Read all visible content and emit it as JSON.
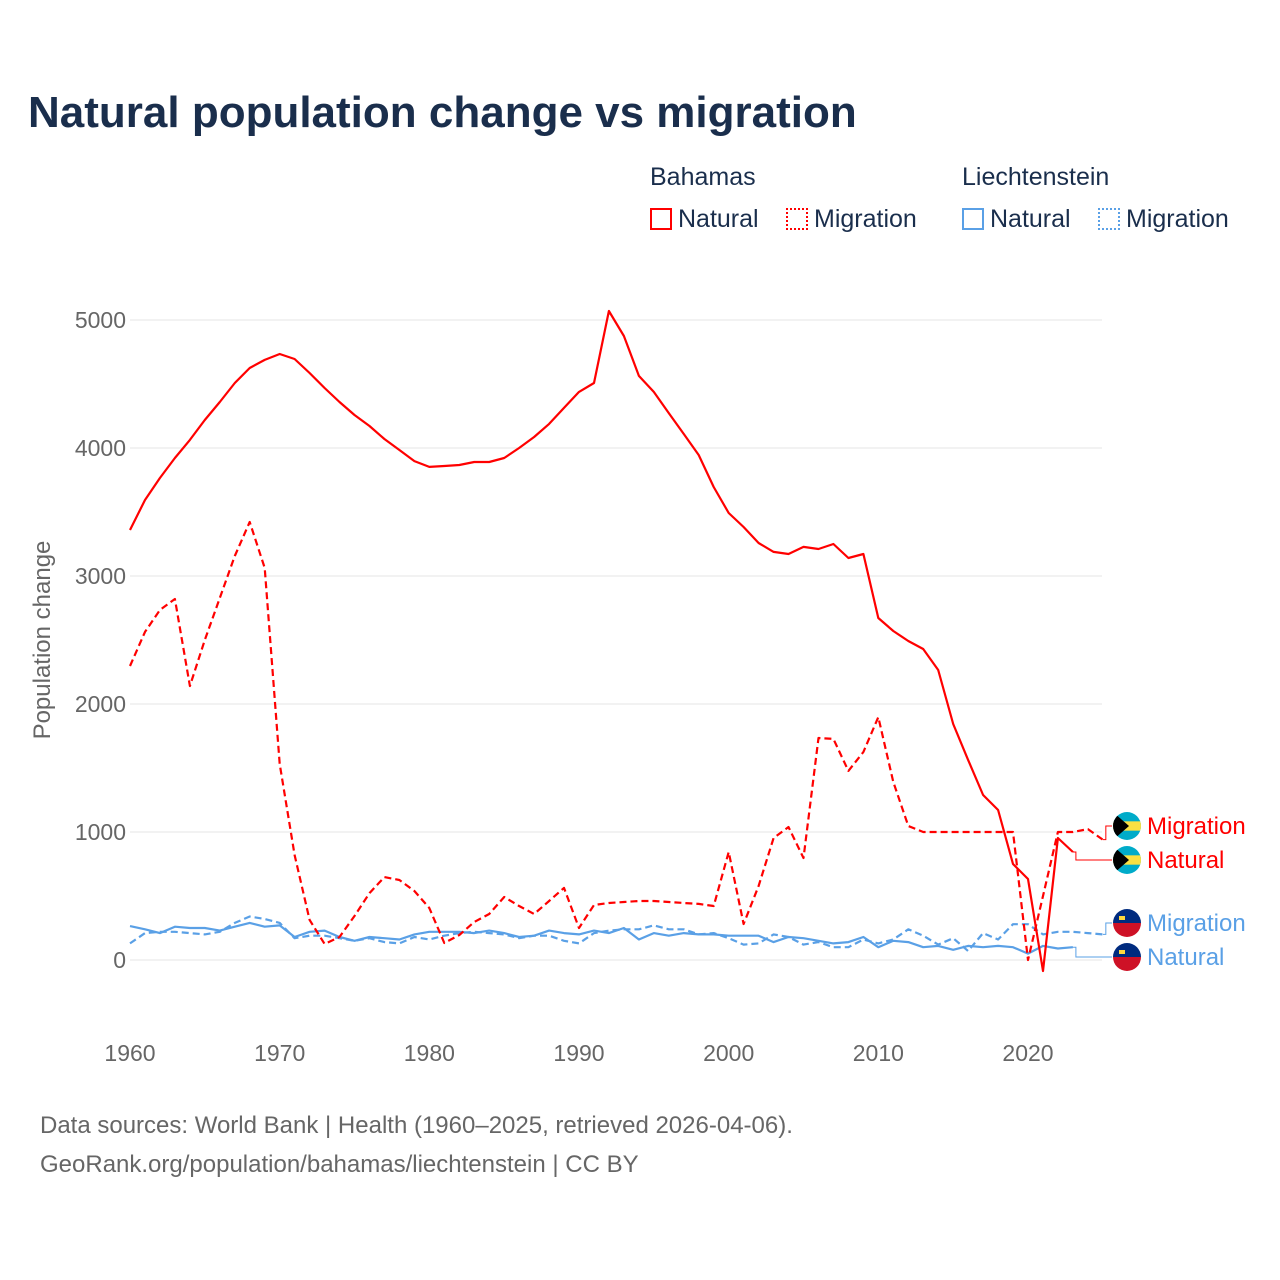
{
  "title": "Natural population change vs migration",
  "legend": {
    "groups": [
      {
        "name": "Bahamas",
        "items": [
          "Natural",
          "Migration"
        ]
      },
      {
        "name": "Liechtenstein",
        "items": [
          "Natural",
          "Migration"
        ]
      }
    ]
  },
  "source": {
    "line1": "Data sources: World Bank | Health (1960–2025, retrieved 2026-04-06).",
    "line2": "GeoRank.org/population/bahamas/liechtenstein | CC BY"
  },
  "colors": {
    "bahamas": "#ff0000",
    "liechtenstein": "#5aa0e6"
  },
  "chart_data": {
    "type": "line",
    "title": "Natural population change vs migration",
    "ylabel": "Population change",
    "xlabel": "",
    "xlim": [
      1960,
      2025
    ],
    "ylim": [
      -500,
      5000
    ],
    "xticks": [
      "1960",
      "1970",
      "1980",
      "1990",
      "2000",
      "2010",
      "2020"
    ],
    "yticks": [
      "0",
      "1000",
      "2000",
      "3000",
      "4000",
      "5000"
    ],
    "grid": true,
    "series": [
      {
        "name": "Bahamas Natural",
        "label": "Natural",
        "country": "bahamas",
        "dash": false,
        "start": 1960,
        "values": [
          3359,
          3594,
          3766,
          3922,
          4063,
          4219,
          4359,
          4508,
          4625,
          4688,
          4734,
          4695,
          4586,
          4469,
          4359,
          4258,
          4172,
          4070,
          3984,
          3898,
          3852,
          3859,
          3867,
          3891,
          3891,
          3922,
          4000,
          4086,
          4188,
          4313,
          4438,
          4508,
          5070,
          4875,
          4563,
          4438,
          4273,
          4109,
          3945,
          3695,
          3492,
          3383,
          3258,
          3188,
          3172,
          3227,
          3211,
          3250,
          3141,
          3172,
          2672,
          2570,
          2492,
          2430,
          2266,
          1844,
          1563,
          1289,
          1172,
          750,
          633,
          -86,
          953,
          844
        ]
      },
      {
        "name": "Bahamas Migration",
        "label": "Migration",
        "country": "bahamas",
        "dash": true,
        "start": 1960,
        "values": [
          2297,
          2563,
          2734,
          2820,
          2141,
          2500,
          2828,
          3156,
          3422,
          3063,
          1531,
          820,
          313,
          125,
          180,
          344,
          523,
          648,
          625,
          539,
          406,
          133,
          195,
          297,
          359,
          492,
          422,
          359,
          461,
          563,
          250,
          430,
          445,
          453,
          461,
          461,
          453,
          445,
          438,
          422,
          844,
          281,
          578,
          953,
          1039,
          797,
          1734,
          1727,
          1477,
          1625,
          1898,
          1391,
          1047,
          1000,
          1000,
          1000,
          1000,
          1000,
          1000,
          1000,
          0,
          500,
          1000,
          1000,
          1023,
          940
        ]
      },
      {
        "name": "Liechtenstein Natural",
        "label": "Natural",
        "country": "liechtenstein",
        "dash": false,
        "start": 1960,
        "values": [
          265,
          240,
          210,
          260,
          250,
          250,
          230,
          260,
          290,
          260,
          270,
          180,
          220,
          230,
          180,
          150,
          180,
          170,
          160,
          200,
          220,
          220,
          220,
          210,
          230,
          210,
          180,
          190,
          230,
          210,
          200,
          230,
          210,
          250,
          160,
          210,
          190,
          210,
          200,
          200,
          190,
          190,
          190,
          140,
          180,
          170,
          150,
          130,
          140,
          180,
          100,
          150,
          140,
          100,
          110,
          80,
          110,
          100,
          110,
          100,
          50,
          110,
          90,
          100
        ]
      },
      {
        "name": "Liechtenstein Migration",
        "label": "Migration",
        "country": "liechtenstein",
        "dash": true,
        "start": 1960,
        "values": [
          130,
          210,
          220,
          220,
          210,
          200,
          220,
          290,
          340,
          320,
          290,
          170,
          190,
          190,
          170,
          150,
          170,
          140,
          130,
          180,
          160,
          190,
          210,
          220,
          210,
          200,
          170,
          190,
          190,
          150,
          130,
          210,
          230,
          240,
          240,
          270,
          240,
          240,
          200,
          210,
          170,
          120,
          130,
          200,
          180,
          120,
          140,
          100,
          100,
          160,
          130,
          160,
          240,
          190,
          120,
          170,
          70,
          210,
          160,
          280,
          280,
          200,
          220,
          220,
          210,
          200
        ]
      }
    ]
  }
}
